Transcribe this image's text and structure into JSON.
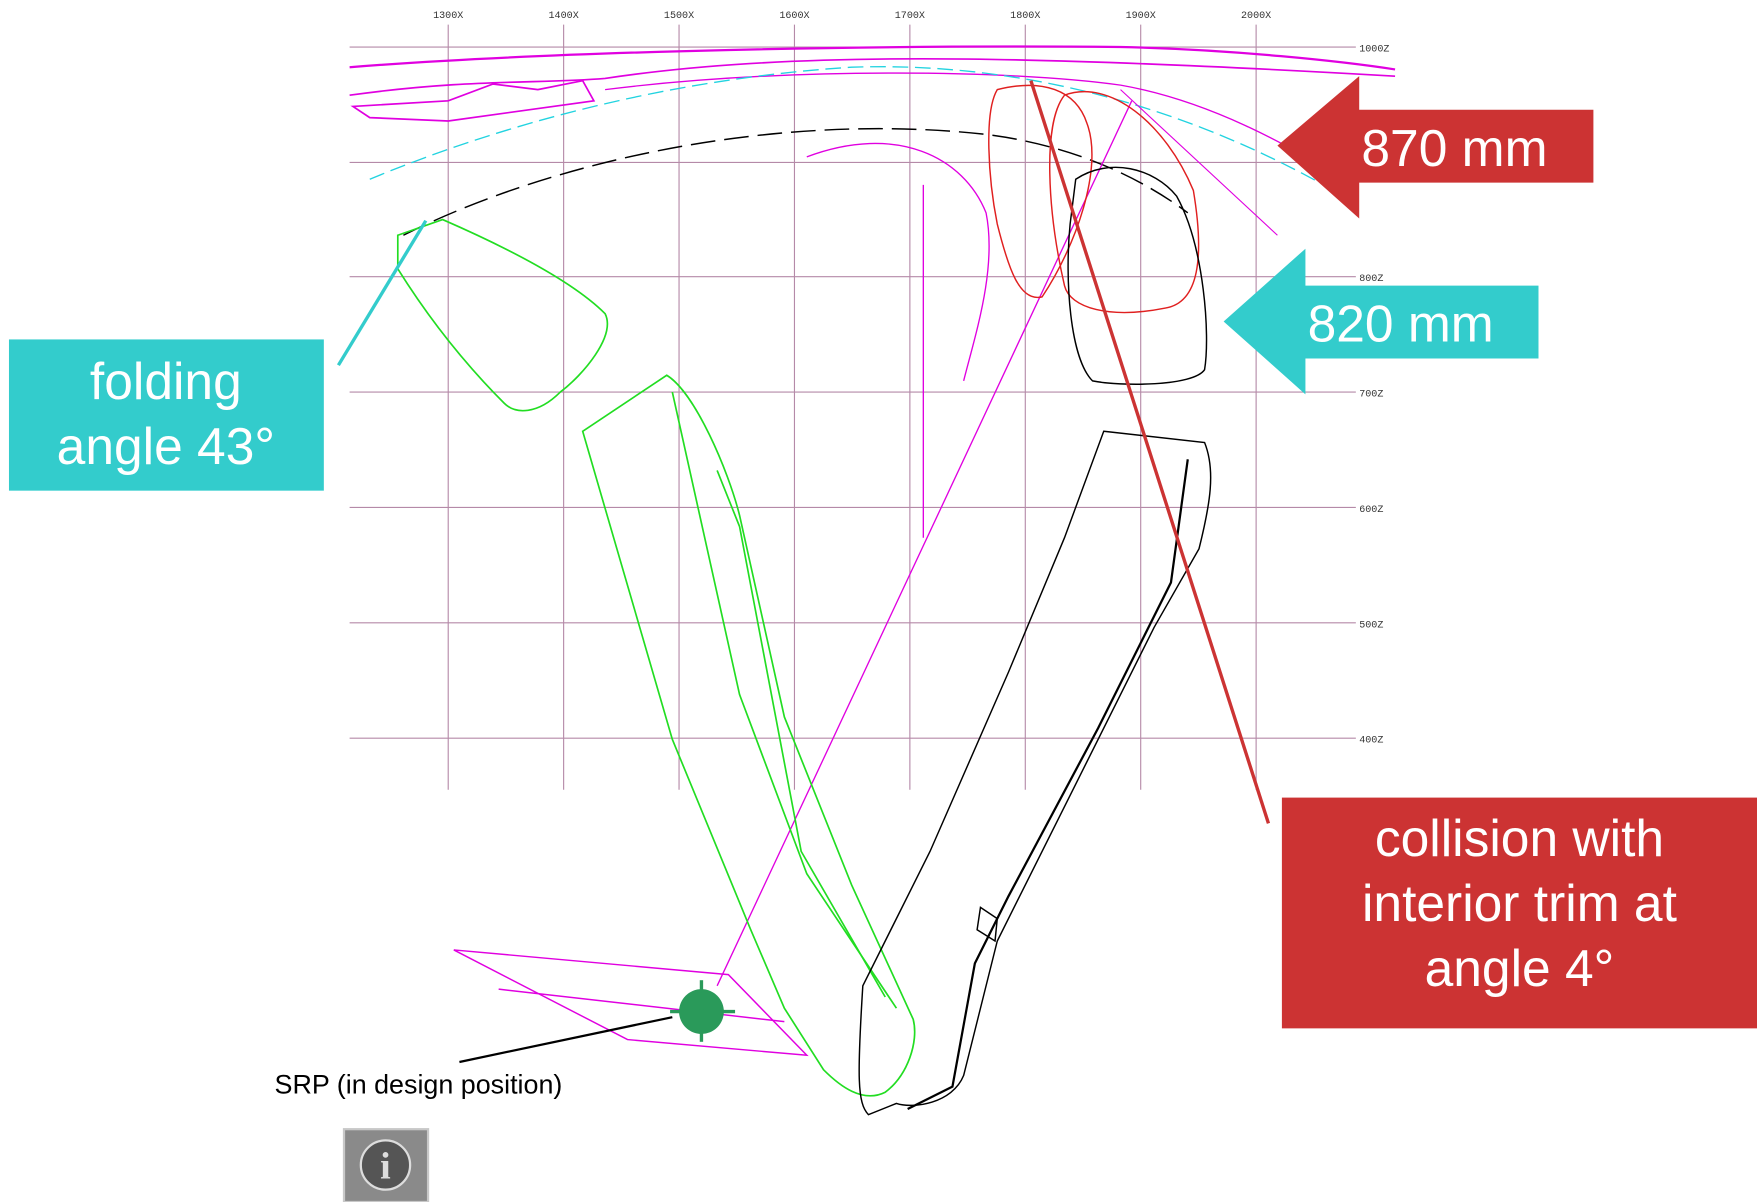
{
  "grid": {
    "x_labels": [
      "1300X",
      "1400X",
      "1500X",
      "1600X",
      "1700X",
      "1800X",
      "1900X",
      "2000X"
    ],
    "z_labels": [
      "1000Z",
      "800Z",
      "700Z",
      "600Z",
      "500Z",
      "400Z"
    ]
  },
  "callouts": {
    "top_red": "870 mm",
    "top_teal": "820 mm",
    "folding": "folding angle 43°",
    "collision": "collision with interior trim at angle 4°"
  },
  "srp_label": "SRP (in design position)"
}
